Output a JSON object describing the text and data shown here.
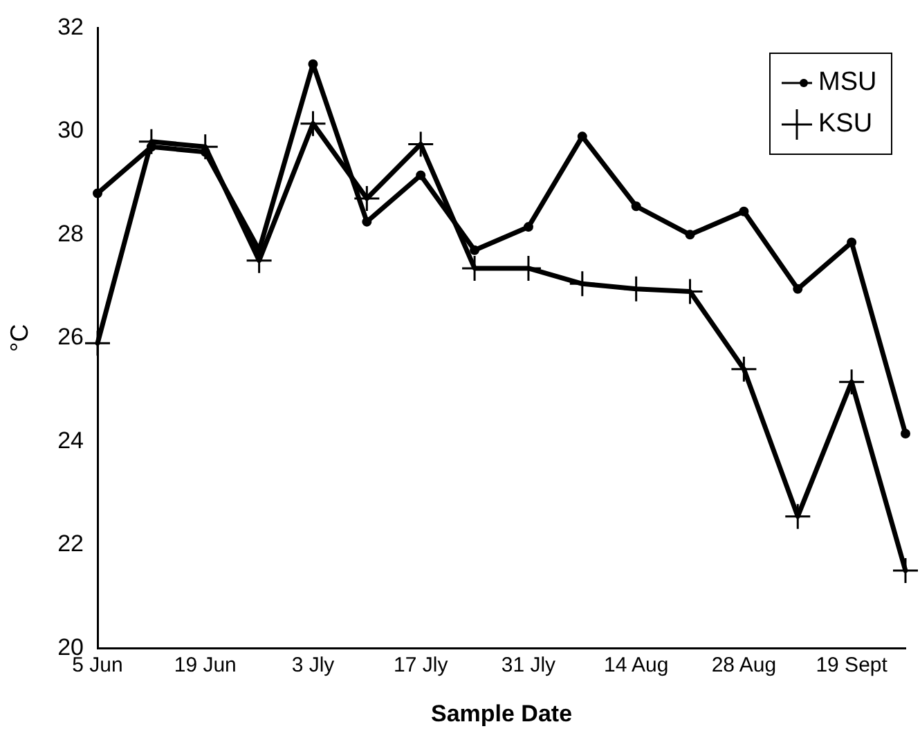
{
  "chart_data": {
    "type": "line",
    "xlabel": "Sample Date",
    "ylabel": "°C",
    "categories": [
      "5 Jun",
      null,
      "19 Jun",
      null,
      "3 Jly",
      null,
      "17 Jly",
      null,
      "31 Jly",
      null,
      "14 Aug",
      null,
      "28 Aug",
      null,
      "19 Sept",
      null
    ],
    "series": [
      {
        "name": "MSU",
        "color": "#000000",
        "marker": "circle",
        "values": [
          28.8,
          29.7,
          29.6,
          27.7,
          31.3,
          28.25,
          29.15,
          27.7,
          28.15,
          29.9,
          28.55,
          28.0,
          28.45,
          26.95,
          27.85,
          24.15
        ]
      },
      {
        "name": "KSU",
        "color": "#000000",
        "marker": "cross",
        "values": [
          25.9,
          29.8,
          29.7,
          27.5,
          30.15,
          28.7,
          29.75,
          27.35,
          27.35,
          27.05,
          26.95,
          26.9,
          25.4,
          22.55,
          25.15,
          21.5
        ]
      }
    ],
    "ylim": [
      20,
      32
    ],
    "yticks": [
      20,
      22,
      24,
      26,
      28,
      30,
      32
    ],
    "grid": false,
    "legend": "top right",
    "line_style": "solid"
  }
}
